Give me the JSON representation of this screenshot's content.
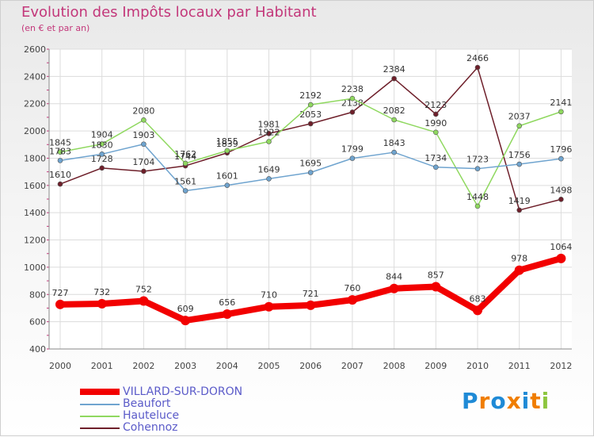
{
  "chart_data": {
    "type": "line",
    "title": "Evolution des Impôts locaux par Habitant",
    "subtitle": "(en € et par an)",
    "xlabel": "",
    "ylabel": "",
    "ylim": [
      400,
      2600
    ],
    "yticks": [
      "400",
      "600",
      "800",
      "1000",
      "1200",
      "1400",
      "1600",
      "1800",
      "2000",
      "2200",
      "2400",
      "2600"
    ],
    "x": [
      "2000",
      "2001",
      "2002",
      "2003",
      "2004",
      "2005",
      "2006",
      "2007",
      "2008",
      "2009",
      "2010",
      "2011",
      "2012"
    ],
    "series": [
      {
        "name": "Cohennoz",
        "color": "#6e1f2a",
        "values": [
          1610,
          1728,
          1704,
          1744,
          1839,
          1981,
          2053,
          2138,
          2384,
          2123,
          2466,
          1419,
          1498
        ]
      },
      {
        "name": "Hauteluce",
        "color": "#8fd85f",
        "values": [
          1845,
          1904,
          2080,
          1762,
          1855,
          1922,
          2192,
          2238,
          2082,
          1990,
          1448,
          2037,
          2141
        ]
      },
      {
        "name": "Beaufort",
        "color": "#6fa4cf",
        "values": [
          1783,
          1830,
          1903,
          1561,
          1601,
          1649,
          1695,
          1799,
          1843,
          1734,
          1723,
          1756,
          1796
        ]
      },
      {
        "name": "VILLARD-SUR-DORON",
        "color": "#f20000",
        "values": [
          727,
          732,
          752,
          609,
          656,
          710,
          721,
          760,
          844,
          857,
          683,
          978,
          1064
        ]
      }
    ],
    "legend": [
      "VILLARD-SUR-DORON",
      "Beaufort",
      "Hauteluce",
      "Cohennoz"
    ],
    "legend_position": "bottom-left"
  },
  "logo": {
    "text": "Proxiti",
    "colors": [
      "#1f8ad6",
      "#f07d00",
      "#1f8ad6",
      "#f07d00",
      "#1f8ad6",
      "#f07d00",
      "#8dc63f"
    ]
  }
}
